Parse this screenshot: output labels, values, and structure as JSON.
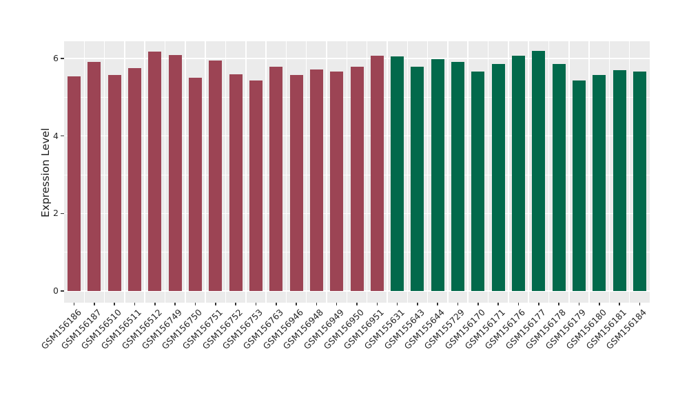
{
  "chart_data": {
    "type": "bar",
    "title": "",
    "xlabel": "",
    "ylabel": "Expression Level",
    "categories": [
      "GSM156186",
      "GSM156187",
      "GSM156510",
      "GSM156511",
      "GSM156512",
      "GSM156749",
      "GSM156750",
      "GSM156751",
      "GSM156752",
      "GSM156753",
      "GSM156763",
      "GSM156946",
      "GSM156948",
      "GSM156949",
      "GSM156950",
      "GSM156951",
      "GSM155631",
      "GSM155643",
      "GSM155644",
      "GSM155729",
      "GSM156170",
      "GSM156171",
      "GSM156176",
      "GSM156177",
      "GSM156178",
      "GSM156179",
      "GSM156180",
      "GSM156181",
      "GSM156184"
    ],
    "values": [
      5.54,
      5.91,
      5.58,
      5.75,
      6.17,
      6.09,
      5.5,
      5.95,
      5.6,
      5.43,
      5.79,
      5.58,
      5.72,
      5.66,
      5.78,
      6.08,
      6.06,
      5.79,
      5.99,
      5.91,
      5.67,
      5.85,
      6.08,
      6.2,
      5.86,
      5.43,
      5.57,
      5.7,
      5.66
    ],
    "groups": [
      "group1",
      "group1",
      "group1",
      "group1",
      "group1",
      "group1",
      "group1",
      "group1",
      "group1",
      "group1",
      "group1",
      "group1",
      "group1",
      "group1",
      "group1",
      "group1",
      "group2",
      "group2",
      "group2",
      "group2",
      "group2",
      "group2",
      "group2",
      "group2",
      "group2",
      "group2",
      "group2",
      "group2",
      "group2"
    ],
    "group_colors": {
      "group1": "#9C4454",
      "group2": "#02694B"
    },
    "yticks": [
      0,
      2,
      4,
      6
    ],
    "yticks_minor": [
      1,
      3,
      5
    ],
    "ylim": [
      0,
      6.45
    ],
    "legend": "none",
    "grid": "on",
    "panel_background": "#EBEBEB",
    "grid_color": "#FFFFFF",
    "axis_text_color": "#262626",
    "tick_color": "#333333"
  }
}
